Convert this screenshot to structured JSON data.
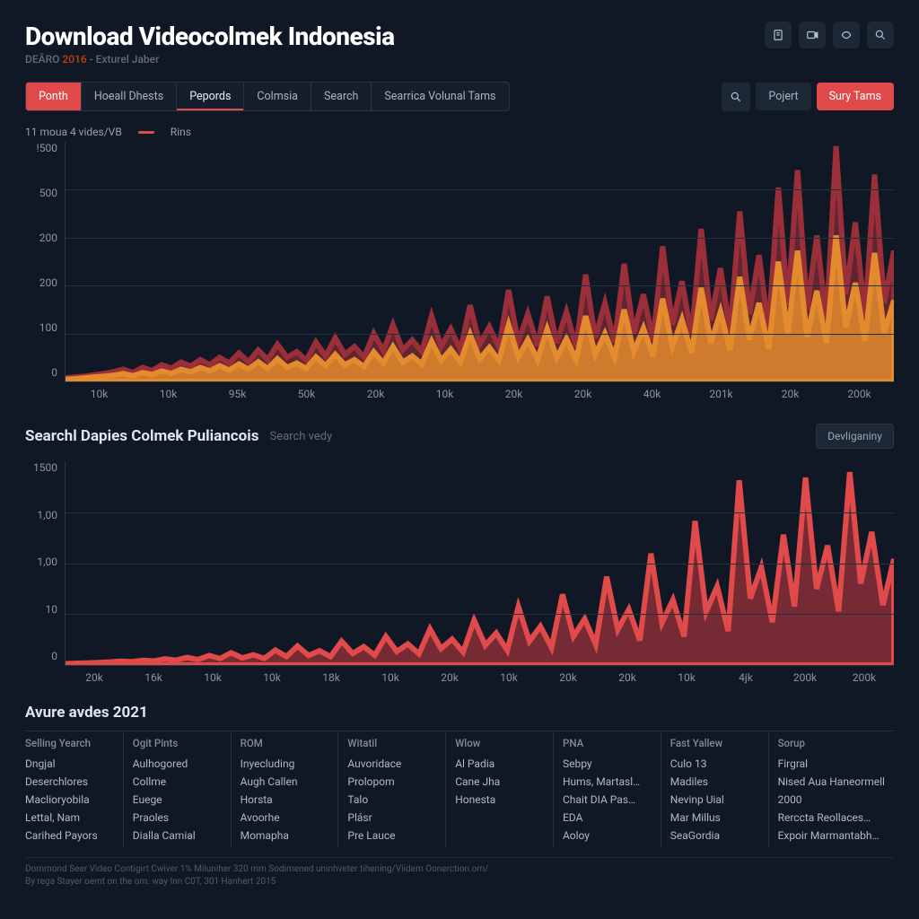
{
  "colors": {
    "bg": "#0f1824",
    "panel": "#151f2c",
    "grid": "#22303f",
    "axis_text": "#8b96a2",
    "red": "#e14a4a",
    "red_dark": "#9a2f3a",
    "orange": "#e38b2d",
    "text": "#c8d0d8",
    "muted": "#5f6e7e"
  },
  "header": {
    "title": "Download Videocolmek Indonesia",
    "sub_prefix": "DEĀRO",
    "sub_year": "2016",
    "sub_suffix": "- Exturel Jaber"
  },
  "header_icons": [
    "page-icon",
    "video-icon",
    "share-icon",
    "search-icon"
  ],
  "tabs": {
    "items": [
      "Ponth",
      "Hoeall Dhests",
      "Pepords",
      "Colmsia",
      "Search",
      "Searrica Volunal Tams"
    ],
    "primary_index": 0,
    "active_index": 2
  },
  "toolbar": {
    "search_icon": true,
    "pill1": "Pojert",
    "pill2": "Sury Tams"
  },
  "chart1": {
    "type": "area",
    "legend": [
      "11 moua 4 vides/VB",
      "Rins"
    ],
    "y_ticks": [
      "!500",
      "500",
      "200",
      "200",
      "100",
      "0"
    ],
    "x_ticks": [
      "10k",
      "10k",
      "95k",
      "50k",
      "20k",
      "10k",
      "20k",
      "20k",
      "40k",
      "201k",
      "20k",
      "200k"
    ],
    "ylim": [
      0,
      550
    ],
    "series_back": {
      "color_line": "#9a2f3a",
      "color_fill": "#6d2832",
      "fill_opacity": 0.85,
      "values": [
        8,
        10,
        12,
        15,
        18,
        22,
        28,
        20,
        32,
        25,
        38,
        30,
        44,
        35,
        50,
        38,
        55,
        42,
        65,
        45,
        72,
        50,
        85,
        55,
        68,
        48,
        90,
        58,
        100,
        62,
        80,
        55,
        110,
        70,
        130,
        72,
        95,
        68,
        150,
        80,
        120,
        72,
        175,
        85,
        125,
        78,
        210,
        90,
        155,
        82,
        195,
        88,
        160,
        80,
        245,
        100,
        180,
        90,
        270,
        110,
        200,
        95,
        310,
        130,
        230,
        105,
        350,
        140,
        260,
        115,
        390,
        155,
        290,
        120,
        445,
        175,
        485,
        165,
        335,
        140,
        540,
        200,
        365,
        150,
        475,
        180,
        300
      ]
    },
    "series_front": {
      "color_line": "#e38b2d",
      "color_fill": "#e38b2d",
      "fill_opacity": 0.85,
      "values": [
        5,
        6,
        8,
        10,
        12,
        14,
        18,
        13,
        20,
        16,
        24,
        18,
        28,
        22,
        32,
        24,
        36,
        26,
        40,
        28,
        45,
        30,
        52,
        32,
        42,
        30,
        56,
        36,
        62,
        38,
        50,
        34,
        68,
        42,
        80,
        44,
        58,
        40,
        92,
        48,
        74,
        44,
        108,
        52,
        78,
        48,
        130,
        56,
        96,
        50,
        120,
        54,
        98,
        50,
        150,
        62,
        110,
        56,
        165,
        68,
        122,
        58,
        190,
        80,
        142,
        65,
        215,
        88,
        160,
        72,
        240,
        96,
        180,
        75,
        275,
        108,
        300,
        102,
        208,
        88,
        335,
        124,
        226,
        93,
        295,
        112,
        186
      ]
    }
  },
  "section2": {
    "title": "Searchl Dapies Colmek Puliancois",
    "hint": "Search vedy",
    "chip": "Devliganiny"
  },
  "chart2": {
    "type": "area",
    "y_ticks": [
      "1500",
      "1,00",
      "1,00",
      "10",
      "0"
    ],
    "x_ticks": [
      "20k",
      "16k",
      "10k",
      "10k",
      "18k",
      "10k",
      "20k",
      "10k",
      "20k",
      "20k",
      "10k",
      "4jk",
      "200k",
      "200k"
    ],
    "ylim": [
      0,
      1500
    ],
    "series": {
      "color_line": "#e14a4a",
      "color_fill": "#8f2f38",
      "fill_opacity": 0.8,
      "values": [
        10,
        12,
        15,
        18,
        22,
        28,
        24,
        35,
        30,
        45,
        35,
        56,
        40,
        70,
        48,
        90,
        52,
        75,
        48,
        110,
        62,
        140,
        70,
        105,
        62,
        175,
        85,
        135,
        72,
        210,
        100,
        155,
        82,
        265,
        120,
        190,
        95,
        330,
        145,
        235,
        108,
        430,
        175,
        285,
        128,
        520,
        210,
        340,
        150,
        650,
        260,
        410,
        180,
        820,
        310,
        480,
        210,
        1060,
        390,
        580,
        250,
        1360,
        490,
        720,
        315,
        960,
        430,
        1380,
        560,
        880,
        395,
        1420,
        600,
        980,
        440,
        780
      ]
    }
  },
  "table": {
    "title": "Avure avdes 2021",
    "columns": [
      {
        "header": "Selling Yearch",
        "rows": [
          "Dngjal",
          "Deserchlores",
          "Maclioryobila",
          "Lettal, Nam",
          "Carihed Payors"
        ]
      },
      {
        "header": "Ogit Pints",
        "rows": [
          "Aulhogored",
          "Collme",
          "Euege",
          "Praoles",
          "Dialla Camial"
        ]
      },
      {
        "header": "ROM",
        "rows": [
          "Inyecluding",
          "Augh Callen",
          "Horsta",
          "Avoorhe",
          "Momapha"
        ]
      },
      {
        "header": "Witatil",
        "rows": [
          "Auvoridace",
          "Prolopom",
          "Talo",
          "Plásr",
          "Pre Lauce"
        ]
      },
      {
        "header": "Wlow",
        "rows": [
          "Al Padia",
          "Cane Jha",
          "Honesta",
          "",
          ""
        ]
      },
      {
        "header": "PNA",
        "rows": [
          "Sebpy",
          "Hums, Martasl…",
          "Chait DIA Pas…",
          "EDA",
          "Aoloy"
        ]
      },
      {
        "header": "Fast Yallew",
        "rows": [
          "Culo 13",
          "Madiles",
          "Nevinp Uial",
          "Mar Millus",
          "SeaGordia"
        ]
      },
      {
        "header": "Sorup",
        "rows": [
          "Firgral",
          "Nised Aua Haneormell",
          "2000",
          "Rerccta Reollaces…",
          "Expoir Marmantabh…"
        ]
      }
    ]
  },
  "footer": {
    "line1": "Dommond Seer Video Contigirt Cwiver 1% Miluniher 320 mm Sodimened uninhveter tihening/Viidem Oonerction.om/",
    "line2": "By rega Stayer oemt on the om. way Inn C0T, 301 Hanhert 2015"
  }
}
